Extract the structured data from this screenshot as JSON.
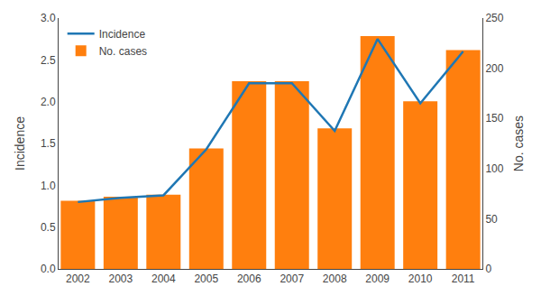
{
  "chart_data": {
    "type": "combo",
    "x": [
      2002,
      2003,
      2004,
      2005,
      2006,
      2007,
      2008,
      2009,
      2010,
      2011
    ],
    "xlim": [
      2001.55,
      2011.45
    ],
    "xticks": [
      2002,
      2003,
      2004,
      2005,
      2006,
      2007,
      2008,
      2009,
      2010,
      2011
    ],
    "series": [
      {
        "name": "Incidence",
        "type": "line",
        "values": [
          0.8,
          0.85,
          0.88,
          1.43,
          2.22,
          2.22,
          1.65,
          2.75,
          1.98,
          2.6
        ]
      },
      {
        "name": "No. cases",
        "type": "bar",
        "axis": "y2",
        "values": [
          68,
          72,
          74,
          120,
          187,
          187,
          140,
          232,
          167,
          218
        ]
      }
    ],
    "ylabel": "Incidence",
    "y2label": "No. cases",
    "ylim": [
      0.0,
      3.0
    ],
    "yticks": [
      {
        "value": 0,
        "label": "0.0"
      },
      0.5,
      {
        "value": 1,
        "label": "1.0"
      },
      1.5,
      {
        "value": 2,
        "label": "2.0"
      },
      2.5,
      {
        "value": 3,
        "label": "3.0"
      }
    ],
    "y2lim": [
      0,
      250
    ],
    "y2ticks": [
      0,
      50,
      100,
      150,
      200,
      250
    ],
    "legend": "upper left",
    "grid": false
  }
}
